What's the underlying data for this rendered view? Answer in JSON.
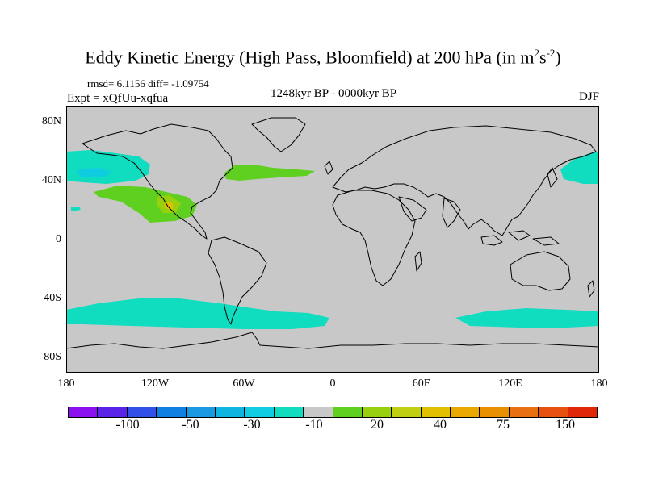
{
  "title": {
    "main": "Eddy Kinetic Energy (High Pass, Bloomfield) at 200 hPa (in m",
    "sup1": "2",
    "mid": "s",
    "sup2": "-2",
    "close": ")"
  },
  "stats": "rmsd= 6.1156  diff= -1.09754",
  "expt": "Expt = xQfUu-xqfua",
  "period": "1248kyr BP - 0000kyr BP",
  "season": "DJF",
  "y_ticks": [
    "80N",
    "40N",
    "0",
    "40S",
    "80S"
  ],
  "x_ticks": [
    "180",
    "120W",
    "60W",
    "0",
    "60E",
    "120E",
    "180"
  ],
  "colorbar": {
    "colors": [
      "#8a10f0",
      "#5a24e8",
      "#3050e8",
      "#1080e0",
      "#1a98e0",
      "#10b4e0",
      "#10cce0",
      "#10dcc0",
      "#c8c8c8",
      "#60d020",
      "#98d010",
      "#c0d010",
      "#e0c000",
      "#e8a800",
      "#e89000",
      "#e87010",
      "#e85010",
      "#e02808"
    ],
    "labels": [
      "-100",
      "-50",
      "-30",
      "-10",
      "20",
      "40",
      "75",
      "150"
    ]
  },
  "map_colors": {
    "ocean_background": "#c8c8c8",
    "neg_light": "#10dcc0",
    "neg_mid": "#10cce0",
    "neg_dark": "#10b4e0",
    "pos_light": "#60d020",
    "pos_mid": "#98d010",
    "pos_high": "#e0c000",
    "coast": "#000000"
  }
}
